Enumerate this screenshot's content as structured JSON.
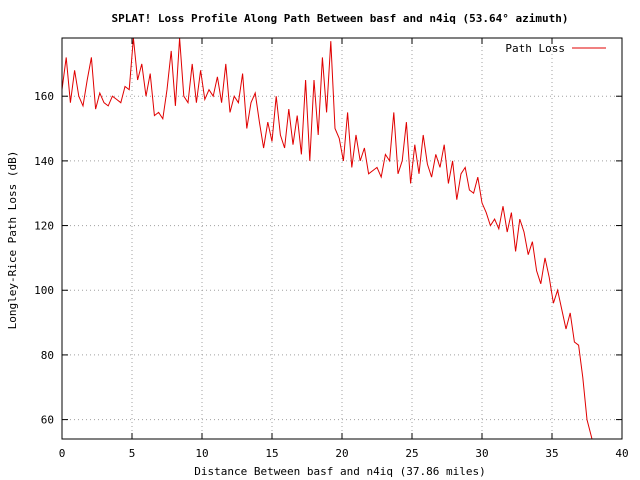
{
  "chart_data": {
    "type": "line",
    "title": "SPLAT! Loss Profile Along Path Between basf and n4iq (53.64° azimuth)",
    "xlabel": "Distance Between basf and n4iq (37.86 miles)",
    "ylabel": "Longley-Rice Path Loss (dB)",
    "xlim": [
      0,
      40
    ],
    "ylim": [
      54,
      178
    ],
    "x_ticks": [
      "0",
      "5",
      "10",
      "15",
      "20",
      "25",
      "30",
      "35",
      "40"
    ],
    "y_ticks": [
      "60",
      "80",
      "100",
      "120",
      "140",
      "160"
    ],
    "grid": true,
    "legend_position": "top-right",
    "series": [
      {
        "name": "Path Loss",
        "color": "#e00000",
        "x": [
          0,
          0.3,
          0.6,
          0.9,
          1.2,
          1.5,
          1.8,
          2.1,
          2.4,
          2.7,
          3.0,
          3.3,
          3.6,
          3.9,
          4.2,
          4.5,
          4.8,
          5.1,
          5.4,
          5.7,
          6.0,
          6.3,
          6.6,
          6.9,
          7.2,
          7.5,
          7.8,
          8.1,
          8.4,
          8.7,
          9.0,
          9.3,
          9.6,
          9.9,
          10.2,
          10.5,
          10.8,
          11.1,
          11.4,
          11.7,
          12.0,
          12.3,
          12.6,
          12.9,
          13.2,
          13.5,
          13.8,
          14.1,
          14.4,
          14.7,
          15.0,
          15.3,
          15.6,
          15.9,
          16.2,
          16.5,
          16.8,
          17.1,
          17.4,
          17.7,
          18.0,
          18.3,
          18.6,
          18.9,
          19.2,
          19.5,
          19.8,
          20.1,
          20.4,
          20.7,
          21.0,
          21.3,
          21.6,
          21.9,
          22.2,
          22.5,
          22.8,
          23.1,
          23.4,
          23.7,
          24.0,
          24.3,
          24.6,
          24.9,
          25.2,
          25.5,
          25.8,
          26.1,
          26.4,
          26.7,
          27.0,
          27.3,
          27.6,
          27.9,
          28.2,
          28.5,
          28.8,
          29.1,
          29.4,
          29.7,
          30.0,
          30.3,
          30.6,
          30.9,
          31.2,
          31.5,
          31.8,
          32.1,
          32.4,
          32.7,
          33.0,
          33.3,
          33.6,
          33.9,
          34.2,
          34.5,
          34.8,
          35.1,
          35.4,
          35.7,
          36.0,
          36.3,
          36.6,
          36.9,
          37.2,
          37.5,
          37.86
        ],
        "values": [
          162,
          172,
          158,
          168,
          160,
          157,
          165,
          172,
          156,
          161,
          158,
          157,
          160,
          159,
          158,
          163,
          162,
          178,
          165,
          170,
          160,
          167,
          154,
          155,
          153,
          162,
          174,
          157,
          178,
          160,
          158,
          170,
          158,
          168,
          159,
          162,
          160,
          166,
          158,
          170,
          155,
          160,
          158,
          167,
          150,
          158,
          161,
          152,
          144,
          152,
          146,
          160,
          148,
          144,
          156,
          145,
          154,
          142,
          165,
          140,
          165,
          148,
          172,
          155,
          177,
          150,
          147,
          140,
          155,
          138,
          148,
          140,
          144,
          136,
          137,
          138,
          135,
          142,
          140,
          155,
          136,
          140,
          152,
          133,
          145,
          136,
          148,
          139,
          135,
          142,
          138,
          145,
          133,
          140,
          128,
          136,
          138,
          131,
          130,
          135,
          127,
          124,
          120,
          122,
          119,
          126,
          118,
          124,
          112,
          122,
          118,
          111,
          115,
          106,
          102,
          110,
          104,
          96,
          100,
          94,
          88,
          93,
          84,
          83,
          73,
          60,
          54
        ]
      }
    ]
  }
}
